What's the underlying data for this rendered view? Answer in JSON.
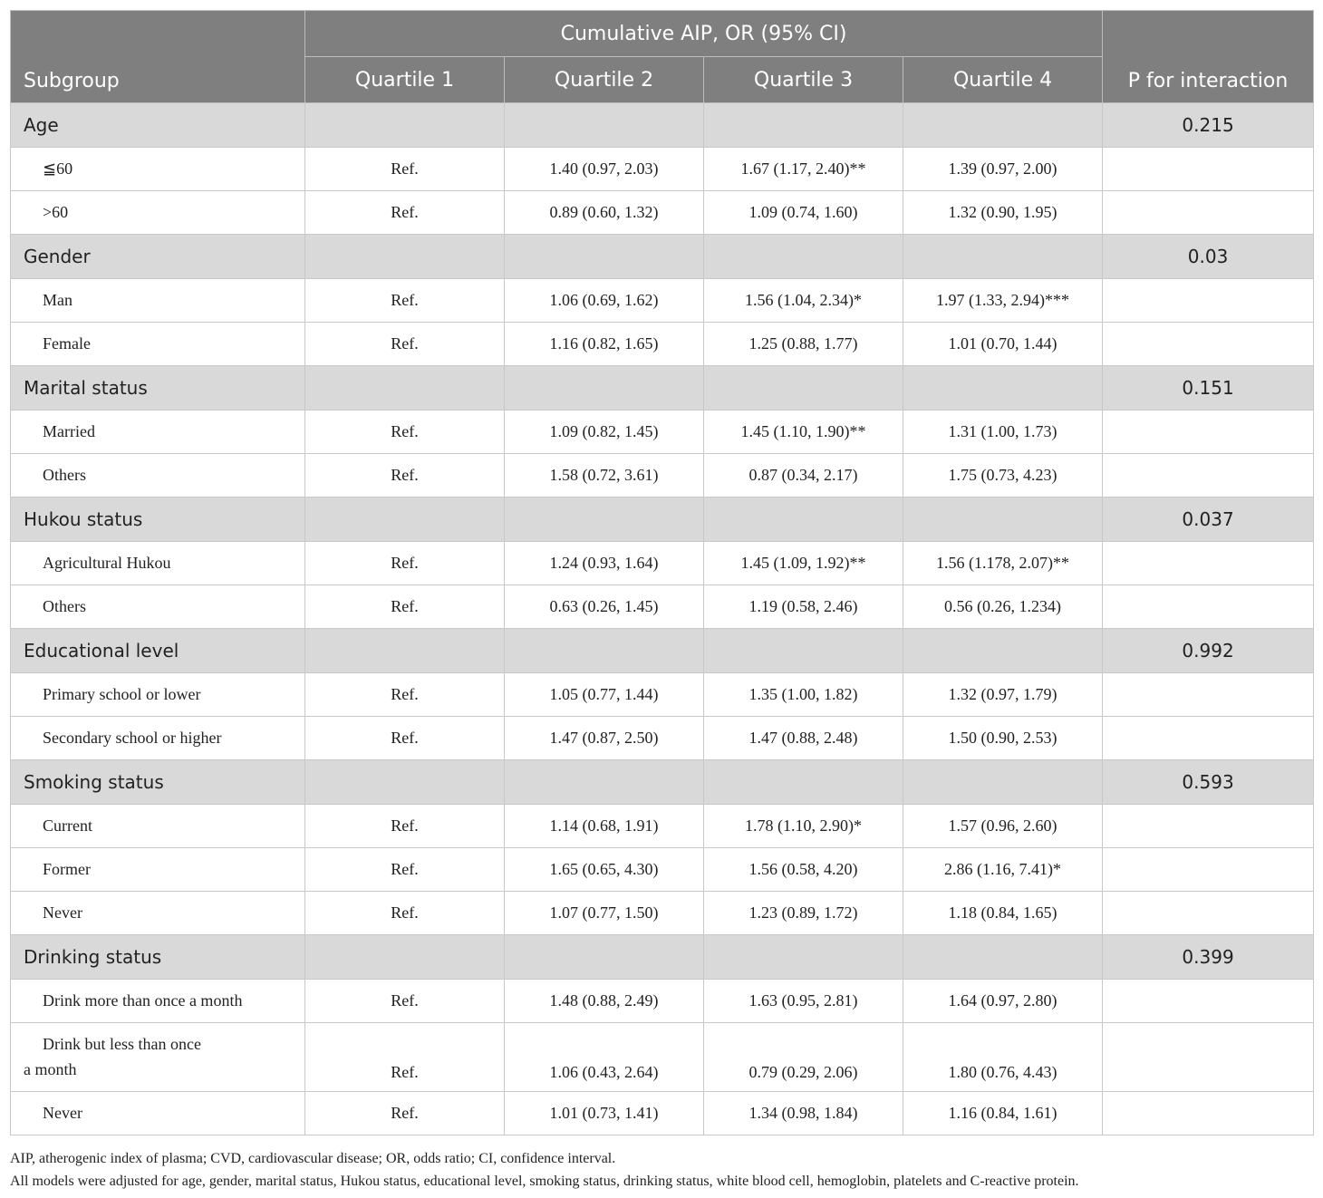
{
  "header": {
    "span_label": "Cumulative AIP, OR (95% CI)",
    "subgroup_label": "Subgroup",
    "quartiles": [
      "Quartile 1",
      "Quartile 2",
      "Quartile 3",
      "Quartile 4"
    ],
    "p_label": "P for interaction"
  },
  "groups": [
    {
      "name": "Age",
      "p": "0.215",
      "rows": [
        {
          "label": "≦60",
          "q1": "Ref.",
          "q2": "1.40 (0.97, 2.03)",
          "q3": "1.67 (1.17, 2.40)**",
          "q4": "1.39 (0.97, 2.00)"
        },
        {
          "label": ">60",
          "q1": "Ref.",
          "q2": "0.89 (0.60, 1.32)",
          "q3": "1.09 (0.74, 1.60)",
          "q4": "1.32 (0.90, 1.95)"
        }
      ]
    },
    {
      "name": "Gender",
      "p": "0.03",
      "rows": [
        {
          "label": "Man",
          "q1": "Ref.",
          "q2": "1.06 (0.69, 1.62)",
          "q3": "1.56 (1.04, 2.34)*",
          "q4": "1.97 (1.33, 2.94)***"
        },
        {
          "label": "Female",
          "q1": "Ref.",
          "q2": "1.16 (0.82, 1.65)",
          "q3": "1.25 (0.88, 1.77)",
          "q4": "1.01 (0.70, 1.44)"
        }
      ]
    },
    {
      "name": "Marital status",
      "p": "0.151",
      "rows": [
        {
          "label": "Married",
          "q1": "Ref.",
          "q2": "1.09 (0.82, 1.45)",
          "q3": "1.45 (1.10, 1.90)**",
          "q4": "1.31 (1.00, 1.73)"
        },
        {
          "label": "Others",
          "q1": "Ref.",
          "q2": "1.58 (0.72, 3.61)",
          "q3": "0.87 (0.34, 2.17)",
          "q4": "1.75 (0.73, 4.23)"
        }
      ]
    },
    {
      "name": "Hukou status",
      "p": "0.037",
      "rows": [
        {
          "label": "Agricultural Hukou",
          "q1": "Ref.",
          "q2": "1.24 (0.93, 1.64)",
          "q3": "1.45 (1.09, 1.92)**",
          "q4": "1.56 (1.178, 2.07)**"
        },
        {
          "label": "Others",
          "q1": "Ref.",
          "q2": "0.63 (0.26, 1.45)",
          "q3": "1.19 (0.58, 2.46)",
          "q4": "0.56 (0.26, 1.234)"
        }
      ]
    },
    {
      "name": "Educational level",
      "p": "0.992",
      "rows": [
        {
          "label": "Primary school or lower",
          "q1": "Ref.",
          "q2": "1.05 (0.77, 1.44)",
          "q3": "1.35 (1.00, 1.82)",
          "q4": "1.32 (0.97, 1.79)"
        },
        {
          "label": "Secondary school or higher",
          "q1": "Ref.",
          "q2": "1.47 (0.87, 2.50)",
          "q3": "1.47 (0.88, 2.48)",
          "q4": "1.50 (0.90, 2.53)"
        }
      ]
    },
    {
      "name": "Smoking status",
      "p": "0.593",
      "rows": [
        {
          "label": "Current",
          "q1": "Ref.",
          "q2": "1.14 (0.68, 1.91)",
          "q3": "1.78 (1.10, 2.90)*",
          "q4": "1.57 (0.96, 2.60)"
        },
        {
          "label": "Former",
          "q1": "Ref.",
          "q2": "1.65 (0.65, 4.30)",
          "q3": "1.56 (0.58, 4.20)",
          "q4": "2.86 (1.16, 7.41)*"
        },
        {
          "label": "Never",
          "q1": "Ref.",
          "q2": "1.07 (0.77, 1.50)",
          "q3": "1.23 (0.89, 1.72)",
          "q4": "1.18 (0.84, 1.65)"
        }
      ]
    },
    {
      "name": "Drinking status",
      "p": "0.399",
      "rows": [
        {
          "label": "Drink more than once a month",
          "q1": "Ref.",
          "q2": "1.48 (0.88, 2.49)",
          "q3": "1.63 (0.95, 2.81)",
          "q4": "1.64 (0.97, 2.80)"
        },
        {
          "label_line1": "Drink but less than once",
          "label_line2": "a month",
          "q1": "Ref.",
          "q2": "1.06 (0.43, 2.64)",
          "q3": "0.79 (0.29, 2.06)",
          "q4": "1.80 (0.76, 4.43)"
        },
        {
          "label": "Never",
          "q1": "Ref.",
          "q2": "1.01 (0.73, 1.41)",
          "q3": "1.34 (0.98, 1.84)",
          "q4": "1.16 (0.84, 1.61)"
        }
      ]
    }
  ],
  "footnotes": [
    "AIP, atherogenic index of plasma; CVD, cardiovascular disease; OR, odds ratio; CI, confidence interval.",
    "All models were adjusted for age, gender, marital status, Hukou status, educational level, smoking status, drinking status, white blood cell, hemoglobin, platelets and C-reactive protein."
  ]
}
